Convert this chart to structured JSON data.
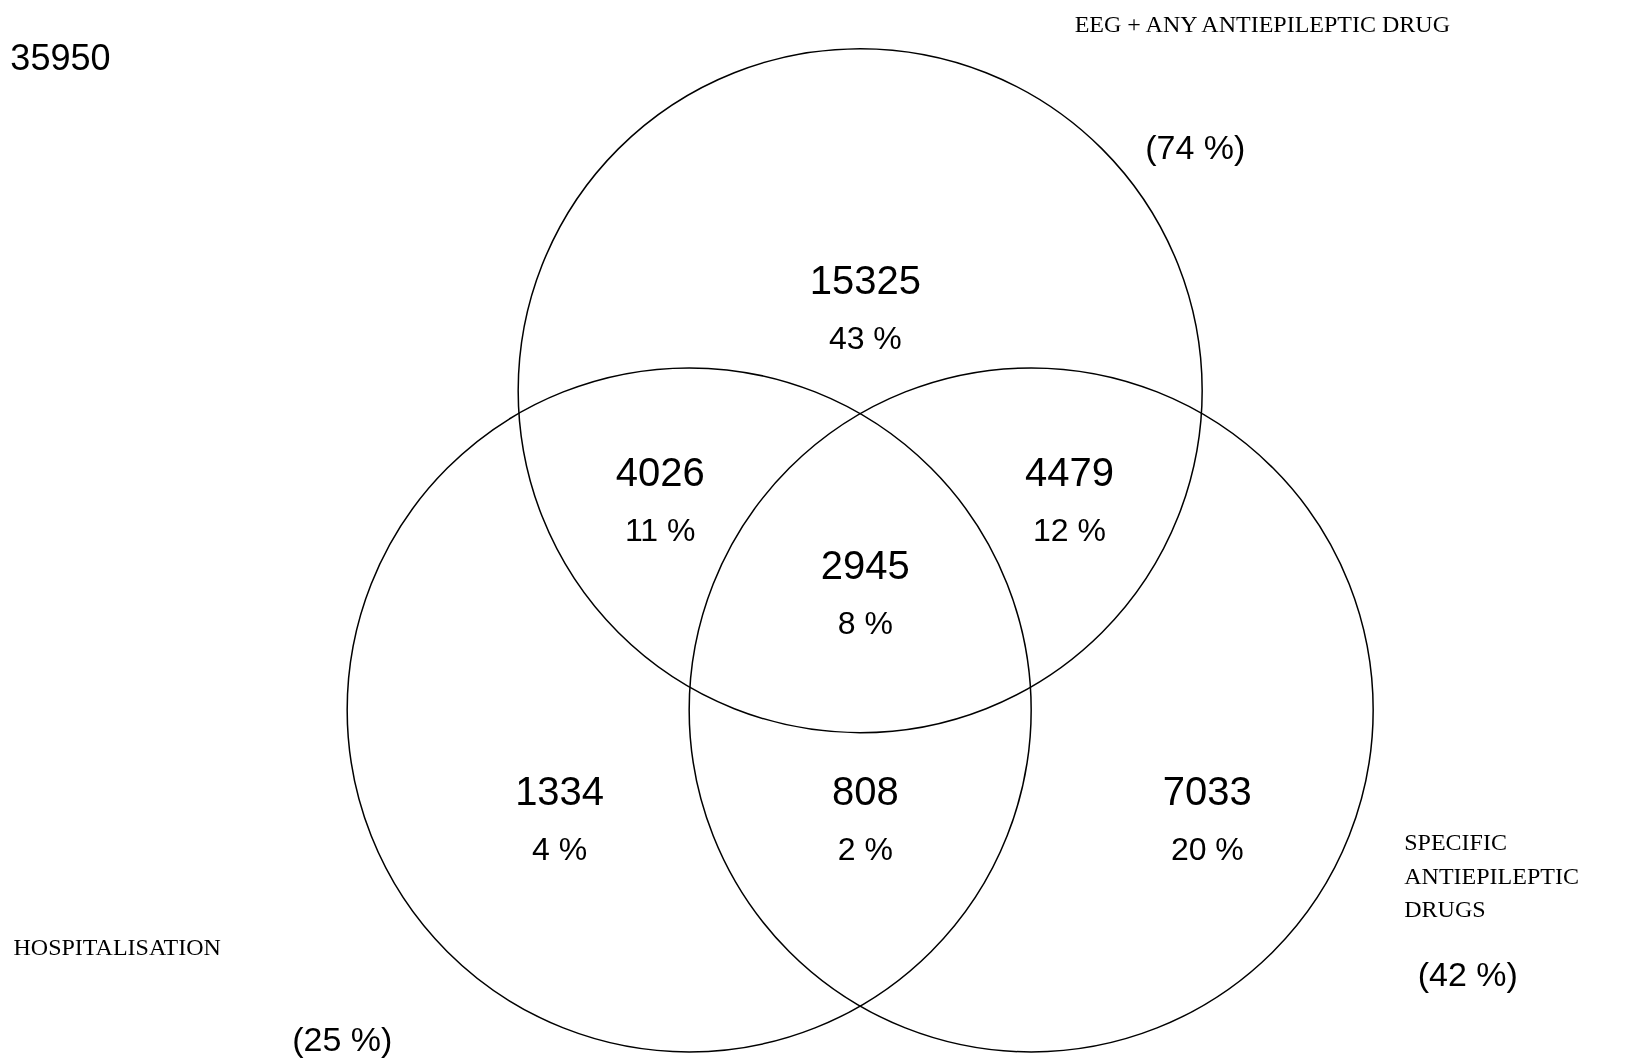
{
  "chart_data": {
    "type": "other",
    "categories": [
      null,
      null,
      null,
      null,
      null,
      null,
      null
    ],
    "values": [
      15325,
      4026,
      4479,
      2945,
      1334,
      808,
      7033
    ],
    "data_labels": true,
    "annotations": [
      "35950",
      "EEG + ANY ANTIEPILEPTIC DRUG",
      "(74 %)",
      "HOSPITALISATION",
      "(25 %)",
      "SPECIFIC ANTIEPILEPTIC DRUGS",
      "(42 %)",
      "43 %",
      "11 %",
      "12 %",
      "8 %",
      "4 %",
      "2 %",
      "20 %"
    ]
  }
}
